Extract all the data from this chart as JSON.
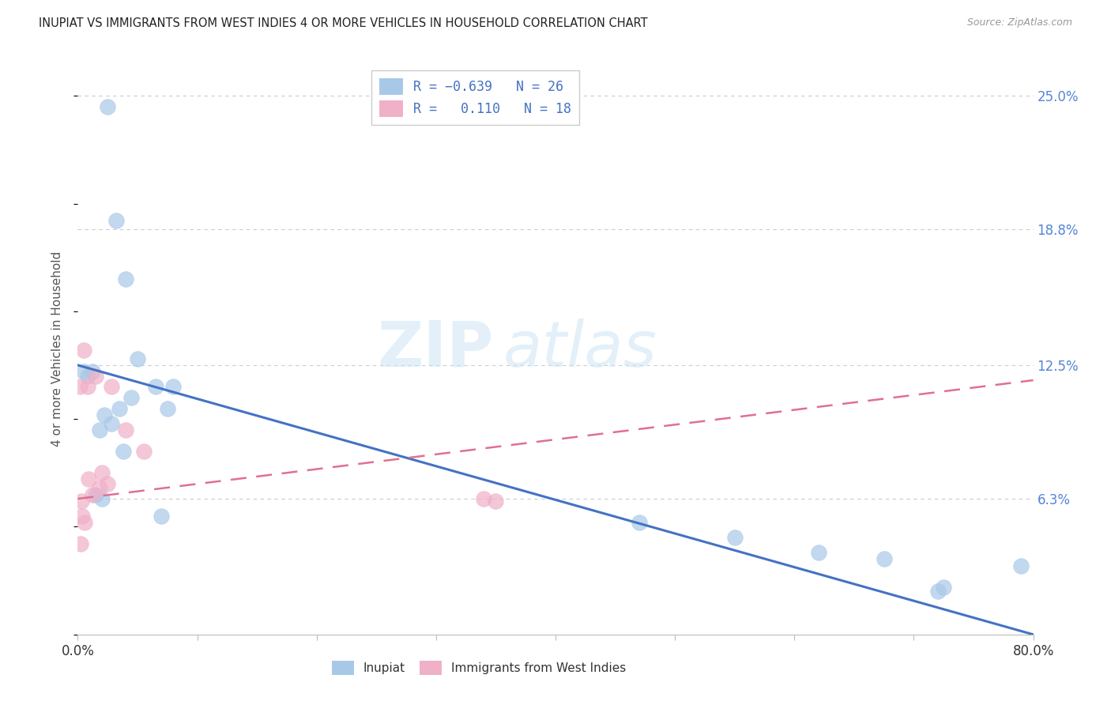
{
  "title": "INUPIAT VS IMMIGRANTS FROM WEST INDIES 4 OR MORE VEHICLES IN HOUSEHOLD CORRELATION CHART",
  "source": "Source: ZipAtlas.com",
  "ylabel": "4 or more Vehicles in Household",
  "ytick_values": [
    6.3,
    12.5,
    18.8,
    25.0
  ],
  "inupiat_color": "#a8c8e8",
  "west_indies_color": "#f0b0c8",
  "line1_color": "#4472c4",
  "line2_color": "#e07090",
  "watermark_zip": "ZIP",
  "watermark_atlas": "atlas",
  "inupiat_x": [
    0.5,
    2.5,
    3.2,
    4.0,
    5.0,
    6.5,
    7.5,
    8.0,
    0.8,
    1.2,
    1.5,
    2.0,
    3.8,
    4.5,
    7.0,
    1.8,
    2.2,
    2.8,
    3.5,
    55.0,
    62.0,
    67.5,
    72.0,
    72.5,
    79.0,
    47.0
  ],
  "inupiat_y": [
    12.2,
    24.5,
    19.2,
    16.5,
    12.8,
    11.5,
    10.5,
    11.5,
    12.0,
    12.2,
    6.5,
    6.3,
    8.5,
    11.0,
    5.5,
    9.5,
    10.2,
    9.8,
    10.5,
    4.5,
    3.8,
    3.5,
    2.0,
    2.2,
    3.2,
    5.2
  ],
  "west_indies_x": [
    0.3,
    0.5,
    0.8,
    1.5,
    2.0,
    2.8,
    4.0,
    5.5,
    0.4,
    0.6,
    1.2,
    1.8,
    2.5,
    34.0,
    35.0,
    0.15,
    0.25,
    0.9
  ],
  "west_indies_y": [
    6.2,
    13.2,
    11.5,
    12.0,
    7.5,
    11.5,
    9.5,
    8.5,
    5.5,
    5.2,
    6.5,
    6.8,
    7.0,
    6.3,
    6.2,
    11.5,
    4.2,
    7.2
  ],
  "line1_x0": 0.0,
  "line1_y0": 12.5,
  "line1_x1": 80.0,
  "line1_y1": 0.0,
  "line2_x0": 0.0,
  "line2_y0": 6.3,
  "line2_x1": 80.0,
  "line2_y1": 11.8,
  "xmin": 0.0,
  "xmax": 80.0,
  "ymin": 0.0,
  "ymax": 26.5,
  "xtick_positions": [
    0.0,
    10.0,
    20.0,
    30.0,
    40.0,
    50.0,
    60.0,
    70.0,
    80.0
  ]
}
